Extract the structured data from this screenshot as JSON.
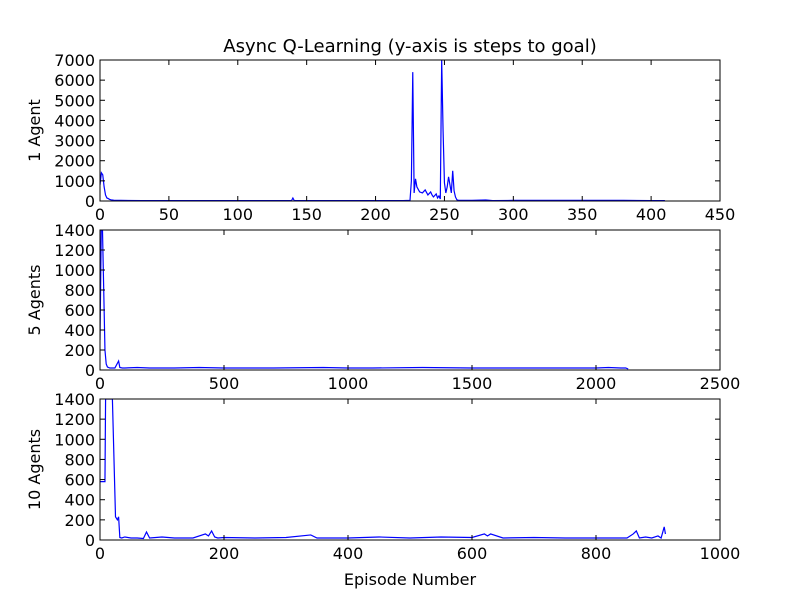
{
  "chart_data": {
    "type": "line",
    "title": "Async Q-Learning (y-axis is steps to goal)",
    "xlabel": "Episode Number",
    "series_color": "#0000ff",
    "subplots": [
      {
        "ylabel": "1 Agent",
        "xlim": [
          0,
          450
        ],
        "ylim": [
          0,
          7000
        ],
        "xticks": [
          0,
          50,
          100,
          150,
          200,
          250,
          300,
          350,
          400,
          450
        ],
        "yticks": [
          0,
          1000,
          2000,
          3000,
          4000,
          5000,
          6000,
          7000
        ],
        "series": [
          {
            "x": [
              0,
              1,
              2,
              3,
              4,
              5,
              6,
              7,
              8,
              10,
              15,
              30,
              60,
              100,
              139,
              140,
              141,
              170,
              200,
              220,
              225,
              226,
              227,
              228,
              229,
              230,
              232,
              234,
              236,
              238,
              240,
              241,
              242,
              244,
              245,
              246,
              247,
              248,
              249,
              250,
              251,
              252,
              253,
              254,
              255,
              256,
              257,
              258,
              259,
              260,
              262,
              270,
              280,
              285,
              300,
              320,
              350,
              380,
              400,
              410
            ],
            "y": [
              800,
              1400,
              1300,
              700,
              300,
              150,
              120,
              80,
              60,
              40,
              30,
              20,
              20,
              20,
              20,
              150,
              20,
              20,
              20,
              20,
              30,
              1000,
              6400,
              400,
              1100,
              700,
              450,
              400,
              550,
              300,
              450,
              300,
              200,
              350,
              150,
              250,
              100,
              7000,
              3500,
              900,
              400,
              700,
              1200,
              800,
              400,
              1500,
              500,
              200,
              60,
              40,
              30,
              30,
              50,
              20,
              30,
              30,
              30,
              30,
              20,
              20
            ]
          }
        ]
      },
      {
        "ylabel": "5 Agents",
        "xlim": [
          0,
          2500
        ],
        "ylim": [
          0,
          1400
        ],
        "xticks": [
          0,
          500,
          1000,
          1500,
          2000,
          2500
        ],
        "yticks": [
          0,
          200,
          400,
          600,
          800,
          1000,
          1200,
          1400
        ],
        "series": [
          {
            "x": [
              0,
              5,
              10,
              15,
              20,
              25,
              30,
              40,
              60,
              75,
              80,
              90,
              100,
              150,
              200,
              300,
              400,
              500,
              700,
              900,
              1000,
              1100,
              1300,
              1500,
              1700,
              1900,
              2000,
              2050,
              2100,
              2120,
              2130
            ],
            "y": [
              300,
              1400,
              1400,
              800,
              200,
              60,
              30,
              20,
              20,
              90,
              25,
              20,
              20,
              25,
              20,
              20,
              25,
              20,
              20,
              25,
              20,
              20,
              25,
              20,
              20,
              20,
              20,
              25,
              20,
              20,
              10
            ]
          }
        ]
      },
      {
        "ylabel": "10 Agents",
        "xlim": [
          0,
          1000
        ],
        "ylim": [
          0,
          1400
        ],
        "xticks": [
          0,
          200,
          400,
          600,
          800,
          1000
        ],
        "yticks": [
          0,
          200,
          400,
          600,
          800,
          1000,
          1200,
          1400
        ],
        "series": [
          {
            "x": [
              0,
              8,
              9,
              14,
              15,
              20,
              25,
              28,
              30,
              32,
              35,
              40,
              50,
              60,
              70,
              75,
              80,
              100,
              120,
              150,
              170,
              175,
              180,
              185,
              190,
              200,
              250,
              300,
              340,
              350,
              400,
              450,
              500,
              550,
              600,
              620,
              625,
              630,
              650,
              700,
              750,
              800,
              850,
              860,
              865,
              870,
              880,
              890,
              900,
              905,
              910,
              912
            ],
            "y": [
              580,
              580,
              1400,
              1400,
              1400,
              1400,
              230,
              200,
              230,
              25,
              20,
              30,
              20,
              20,
              15,
              80,
              20,
              30,
              20,
              20,
              60,
              40,
              90,
              30,
              20,
              25,
              20,
              25,
              50,
              20,
              20,
              30,
              20,
              30,
              25,
              60,
              40,
              60,
              20,
              25,
              20,
              20,
              20,
              60,
              90,
              20,
              30,
              20,
              40,
              20,
              130,
              60
            ]
          }
        ]
      }
    ]
  }
}
